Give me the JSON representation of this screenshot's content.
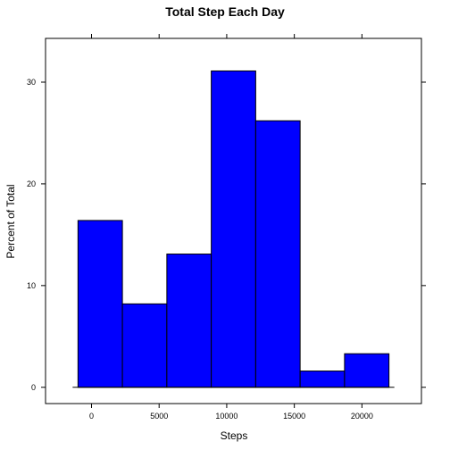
{
  "chart_data": {
    "type": "bar",
    "title": "Total Step Each Day",
    "xlabel": "Steps",
    "ylabel": "Percent of Total",
    "bin_edges": [
      -1000,
      2285.714,
      5571.429,
      8857.143,
      12142.857,
      15428.571,
      18714.286,
      22000
    ],
    "values": [
      16.4,
      8.2,
      13.1,
      31.1,
      26.2,
      1.6,
      3.3
    ],
    "xlim": [
      -3400,
      24400
    ],
    "ylim": [
      -1.6,
      34.3
    ],
    "x_ticks": [
      0,
      5000,
      10000,
      15000,
      20000
    ],
    "x_tick_labels": [
      "0",
      "5000",
      "10000",
      "15000",
      "20000"
    ],
    "y_ticks": [
      0,
      10,
      20,
      30
    ],
    "y_tick_labels": [
      "0",
      "10",
      "20",
      "30"
    ],
    "bar_color": "#0000FF",
    "grid": false
  }
}
